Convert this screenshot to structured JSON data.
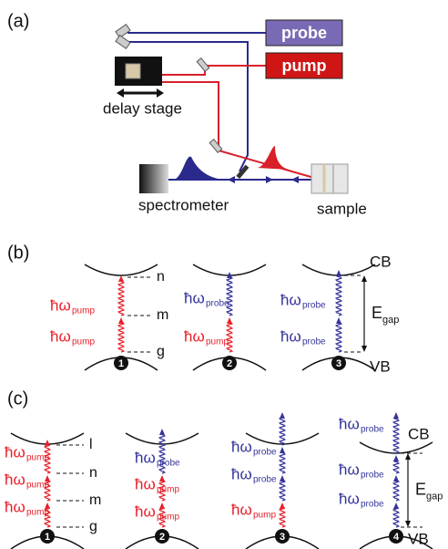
{
  "panel_a": {
    "label": "(a)",
    "probe": "probe",
    "pump": "pump",
    "delay_stage": "delay stage",
    "spectrometer": "spectrometer",
    "sample": "sample"
  },
  "photon_symbol": "ħω",
  "pump": "pump",
  "probe": "probe",
  "panel_b": {
    "label": "(b)",
    "levels": [
      "n",
      "m",
      "g"
    ],
    "cb": "CB",
    "vb": "VB",
    "gap": {
      "symbol": "E",
      "subscript": "gap"
    },
    "steps": [
      "1",
      "2",
      "3"
    ]
  },
  "panel_c": {
    "label": "(c)",
    "levels": [
      "l",
      "n",
      "m",
      "g"
    ],
    "cb": "CB",
    "vb": "VB",
    "gap": {
      "symbol": "E",
      "subscript": "gap"
    },
    "steps": [
      "1",
      "2",
      "3",
      "4"
    ]
  }
}
